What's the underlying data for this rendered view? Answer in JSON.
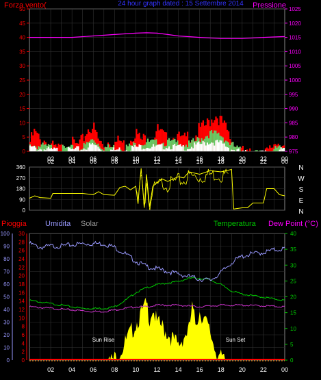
{
  "header": {
    "left_title": "Forza vento(",
    "center_title": "24 hour graph dated : 15 Settembre 2014",
    "right_title": "Pressione"
  },
  "legend_bottom": {
    "pioggia": "Pioggia",
    "umidita": "Umidita",
    "solar": "Solar",
    "temperatura": "Temperatura",
    "dew_point": "Dew Point (°C)"
  },
  "annotations": {
    "sun_rise": "Sun Rise",
    "sun_set": "Sun Set"
  },
  "compass": [
    "N",
    "W",
    "S",
    "E",
    "N"
  ],
  "colors": {
    "red": "#ff0000",
    "magenta": "#ff00ff",
    "blue": "#0000ff",
    "lavender": "#9999ff",
    "green": "#00cc00",
    "white": "#ffffff",
    "yellow": "#ffff00",
    "gray": "#999999",
    "orange": "#ff8800",
    "dew": "#cc33cc"
  },
  "chart_data": [
    {
      "type": "area",
      "name": "wind-chart",
      "x_ticks": [
        "02",
        "04",
        "06",
        "08",
        "10",
        "12",
        "14",
        "16",
        "18",
        "20",
        "22",
        "00"
      ],
      "y_left": {
        "label": "Forza vento(",
        "ticks": [
          0,
          5,
          10,
          15,
          20,
          25,
          30,
          35,
          40,
          45,
          50
        ],
        "range": [
          0,
          50
        ]
      },
      "y_right": {
        "label": "Pressione",
        "ticks": [
          975,
          980,
          985,
          990,
          995,
          1000,
          1005,
          1010,
          1015,
          1020,
          1025
        ],
        "range": [
          975,
          1025
        ]
      },
      "x_range_hours": [
        0,
        24
      ],
      "series": [
        {
          "name": "Pressione",
          "color": "#ff00ff",
          "x": [
            0,
            2,
            4,
            6,
            8,
            10,
            11,
            12,
            13,
            14,
            16,
            18,
            20,
            22,
            24
          ],
          "values": [
            1015,
            1015,
            1015,
            1015.5,
            1016,
            1016.5,
            1016.6,
            1016.5,
            1016,
            1015.5,
            1015,
            1014.6,
            1014.6,
            1015,
            1015.3
          ]
        },
        {
          "name": "gust",
          "color": "#ff0000",
          "x": [
            0,
            0.5,
            1,
            1.5,
            2,
            2.5,
            3,
            3.5,
            4,
            4.5,
            5,
            5.5,
            6,
            6.5,
            7,
            7.5,
            8,
            8.5,
            9,
            9.5,
            10,
            10.5,
            11,
            11.5,
            12,
            12.5,
            13,
            13.5,
            14,
            14.5,
            15,
            15.5,
            16,
            16.5,
            17,
            17.5,
            18,
            18.5,
            19,
            19.5,
            20,
            20.5,
            21,
            21.5,
            22,
            22.5,
            23,
            23.5,
            24
          ],
          "values": [
            4,
            8,
            5,
            5,
            3,
            2,
            2,
            3,
            4,
            3,
            5,
            9,
            10,
            5,
            3,
            5,
            4,
            5,
            3,
            6,
            8,
            5,
            6,
            5,
            9,
            7,
            5,
            6,
            6,
            5,
            7,
            6,
            9,
            10,
            12,
            14,
            12,
            9,
            5,
            3,
            1,
            0,
            0,
            2,
            0,
            1,
            4,
            5,
            2
          ]
        },
        {
          "name": "average",
          "color": "#00cc00",
          "x": [
            0,
            1,
            2,
            3,
            4,
            5,
            6,
            7,
            8,
            9,
            10,
            11,
            12,
            13,
            14,
            15,
            16,
            17,
            18,
            19,
            20,
            21,
            22,
            23,
            24
          ],
          "values": [
            3,
            2.5,
            2,
            1.5,
            1.5,
            2,
            5,
            2,
            2,
            2,
            3,
            4,
            3.5,
            4,
            3.5,
            3,
            5,
            7,
            6.5,
            3,
            0.5,
            0,
            0,
            1,
            2
          ]
        },
        {
          "name": "wind",
          "color": "#ffffff",
          "x": [
            0,
            1,
            2,
            3,
            4,
            5,
            6,
            7,
            8,
            9,
            10,
            11,
            12,
            13,
            14,
            15,
            16,
            17,
            18,
            19,
            20,
            21,
            22,
            23,
            24
          ],
          "values": [
            2,
            1.5,
            1,
            1,
            1,
            1.5,
            3,
            1,
            1,
            1.5,
            2,
            2.5,
            2,
            2.5,
            2,
            2,
            3,
            4,
            3.5,
            1.5,
            0,
            0,
            0,
            0.5,
            1
          ]
        }
      ]
    },
    {
      "type": "line",
      "name": "direction-chart",
      "x_ticks": [
        "02",
        "04",
        "06",
        "08",
        "10",
        "12",
        "14",
        "16",
        "18",
        "20",
        "22",
        "00"
      ],
      "y_left": {
        "ticks": [
          0,
          90,
          180,
          270,
          360
        ],
        "range": [
          0,
          360
        ]
      },
      "y_right_labels": [
        "N",
        "W",
        "S",
        "E",
        "N"
      ],
      "x_range_hours": [
        0,
        24
      ],
      "series": [
        {
          "name": "Direzione",
          "color": "#ffff00",
          "x": [
            0,
            0.5,
            1,
            2,
            2.2,
            4,
            5,
            6,
            6.5,
            7,
            8,
            8.5,
            9,
            9.5,
            10,
            10.2,
            10.5,
            10.8,
            11,
            11.3,
            11.6,
            12,
            12.5,
            13,
            14,
            14.5,
            15,
            16,
            17,
            18,
            19,
            19.2,
            20,
            20.5,
            21,
            22,
            22.3,
            23,
            23.5,
            24
          ],
          "values": [
            100,
            120,
            105,
            100,
            140,
            140,
            140,
            130,
            155,
            130,
            125,
            190,
            200,
            170,
            200,
            60,
            350,
            20,
            300,
            30,
            200,
            230,
            260,
            240,
            280,
            270,
            320,
            300,
            330,
            320,
            340,
            10,
            20,
            20,
            60,
            60,
            180,
            180,
            130,
            120
          ]
        }
      ]
    },
    {
      "type": "line",
      "name": "climate-chart",
      "x_ticks": [
        "02",
        "04",
        "06",
        "08",
        "10",
        "12",
        "14",
        "16",
        "18",
        "20",
        "22",
        "00"
      ],
      "y_axis_pioggia": {
        "label": "Pioggia",
        "ticks": [
          0,
          2,
          4,
          6,
          8,
          10,
          12,
          14,
          16,
          18,
          20,
          22,
          24,
          26,
          28,
          30
        ]
      },
      "y_axis_umidita": {
        "label": "Umidita",
        "ticks": [
          0,
          10,
          20,
          30,
          40,
          50,
          60,
          70,
          80,
          90,
          100
        ],
        "range": [
          0,
          100
        ]
      },
      "y_axis_temperatura": {
        "label": "Temperatura",
        "ticks": [
          0,
          5,
          10,
          15,
          20,
          25,
          30,
          35,
          40
        ],
        "range": [
          0,
          40
        ]
      },
      "x_range_hours": [
        0,
        24
      ],
      "series": [
        {
          "name": "Umidita",
          "axis": "umidita",
          "color": "#9999ff",
          "x": [
            0,
            1,
            2,
            3,
            4,
            5,
            6,
            7,
            8,
            9,
            10,
            11,
            12,
            13,
            14,
            15,
            16,
            17,
            18,
            19,
            20,
            21,
            22,
            23,
            24
          ],
          "values": [
            93,
            90,
            91,
            91,
            92,
            93,
            93,
            93,
            90,
            85,
            79,
            75,
            73,
            71,
            69,
            67,
            65,
            64,
            70,
            78,
            83,
            85,
            86,
            88,
            89
          ]
        },
        {
          "name": "Temperatura",
          "axis": "temperatura",
          "color": "#00cc00",
          "x": [
            0,
            1,
            2,
            3,
            4,
            5,
            6,
            7,
            8,
            9,
            10,
            11,
            12,
            13,
            14,
            15,
            16,
            17,
            18,
            19,
            20,
            21,
            22,
            23,
            24
          ],
          "values": [
            19,
            18.5,
            18,
            17.5,
            17,
            16.5,
            16.5,
            16.5,
            17,
            19,
            21.5,
            23,
            24,
            24.5,
            25,
            26,
            26,
            25.5,
            24,
            22,
            21,
            20.5,
            20,
            19.5,
            19
          ]
        },
        {
          "name": "Dew Point",
          "axis": "temperatura",
          "color": "#cc33cc",
          "x": [
            0,
            2,
            4,
            6,
            7,
            8,
            9,
            10,
            11,
            12,
            14,
            16,
            18,
            20,
            22,
            24
          ],
          "values": [
            17,
            16.5,
            16,
            15.5,
            15.5,
            16,
            16.5,
            17,
            17,
            17.5,
            17.5,
            17,
            17.5,
            17.5,
            17.3,
            17
          ]
        },
        {
          "name": "Solar",
          "axis": "temperatura",
          "color": "#ffff00",
          "x": [
            0,
            6.5,
            7,
            7.5,
            8,
            8.5,
            9,
            9.5,
            10,
            10.5,
            11,
            11.3,
            11.6,
            12,
            12.5,
            13,
            13.5,
            14,
            14.5,
            15,
            15.3,
            15.6,
            16,
            16.5,
            17,
            17.5,
            18,
            18.5,
            24
          ],
          "values": [
            0,
            0,
            0.3,
            1,
            2,
            4,
            7,
            10,
            13,
            16,
            19,
            15,
            18,
            13,
            12,
            10,
            8,
            6,
            9,
            11,
            18,
            13,
            17,
            14,
            10,
            5,
            2,
            0.3,
            0
          ]
        },
        {
          "name": "Pioggia",
          "axis": "pioggia",
          "color": "#ff0000",
          "x": [
            0,
            24
          ],
          "values": [
            0,
            0
          ]
        }
      ]
    }
  ]
}
